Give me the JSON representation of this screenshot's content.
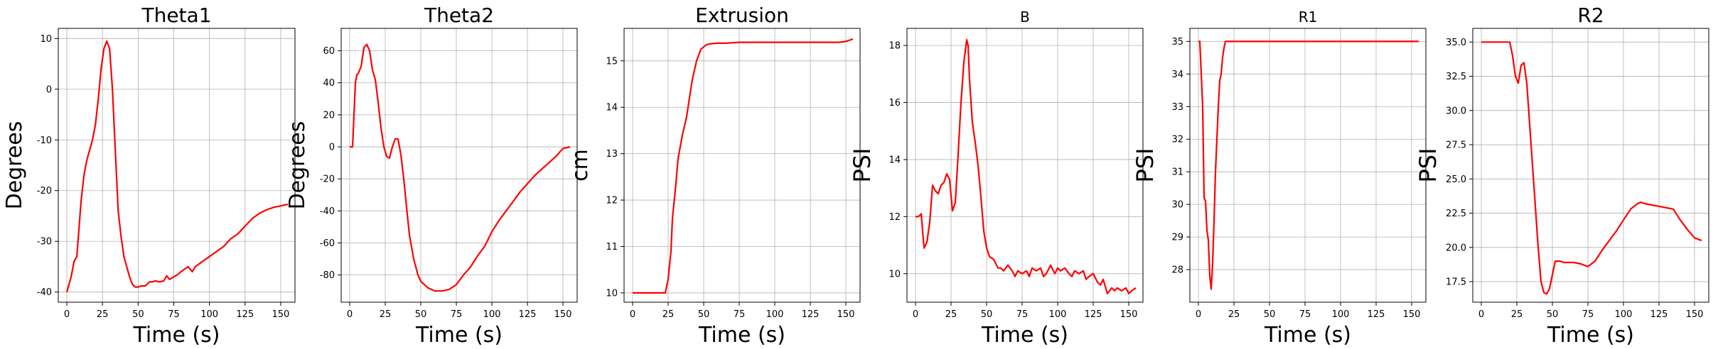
{
  "chart_data": [
    {
      "type": "line",
      "title": "Theta1",
      "xlabel": "Time (s)",
      "ylabel": "Degrees",
      "xlim": [
        -6,
        160
      ],
      "ylim": [
        -42,
        12
      ],
      "xticks": [
        0,
        25,
        50,
        75,
        100,
        125,
        150
      ],
      "yticks": [
        -40,
        -30,
        -20,
        -10,
        0,
        10
      ],
      "grid": true,
      "color": "#ff0000",
      "x": [
        0,
        3,
        5,
        7,
        10,
        12,
        14,
        16,
        18,
        20,
        22,
        24,
        26,
        28,
        30,
        32,
        34,
        36,
        38,
        40,
        42,
        44,
        46,
        48,
        50,
        52,
        55,
        58,
        60,
        62,
        65,
        68,
        70,
        72,
        75,
        78,
        80,
        85,
        88,
        90,
        95,
        100,
        105,
        110,
        115,
        120,
        125,
        130,
        135,
        140,
        145,
        150,
        155
      ],
      "y": [
        -40,
        -37,
        -34,
        -33,
        -22,
        -17,
        -14,
        -12,
        -10,
        -7,
        -2,
        4,
        8,
        9.5,
        8,
        0,
        -12,
        -24,
        -29,
        -33,
        -35,
        -37,
        -38.5,
        -39,
        -39,
        -38.8,
        -38.8,
        -38,
        -38,
        -37.8,
        -38,
        -37.8,
        -36.8,
        -37.5,
        -37,
        -36.5,
        -36,
        -35,
        -36,
        -35,
        -34,
        -33,
        -32,
        -31,
        -29.5,
        -28.5,
        -27,
        -25.5,
        -24.5,
        -23.8,
        -23.3,
        -23,
        -22.7
      ]
    },
    {
      "type": "line",
      "title": "Theta2",
      "xlabel": "Time (s)",
      "ylabel": "Degrees",
      "xlim": [
        -6,
        160
      ],
      "ylim": [
        -97,
        74
      ],
      "xticks": [
        0,
        25,
        50,
        75,
        100,
        125,
        150
      ],
      "yticks": [
        -80,
        -60,
        -40,
        -20,
        0,
        20,
        40,
        60
      ],
      "grid": true,
      "color": "#ff0000",
      "x": [
        0,
        2,
        4,
        5,
        6,
        8,
        10,
        12,
        14,
        16,
        18,
        20,
        22,
        24,
        26,
        28,
        30,
        32,
        34,
        36,
        38,
        40,
        42,
        45,
        48,
        50,
        55,
        60,
        65,
        70,
        75,
        80,
        85,
        90,
        95,
        100,
        105,
        110,
        115,
        120,
        125,
        130,
        135,
        140,
        145,
        150,
        155
      ],
      "y": [
        0,
        0,
        40,
        45,
        46,
        50,
        62,
        64,
        60,
        48,
        42,
        28,
        12,
        0,
        -6,
        -7,
        0,
        5,
        5,
        -5,
        -20,
        -38,
        -55,
        -70,
        -80,
        -84,
        -88,
        -90,
        -90,
        -89,
        -86,
        -80,
        -75,
        -68,
        -62,
        -53,
        -46,
        -40,
        -34,
        -28,
        -23,
        -18,
        -14,
        -10,
        -6,
        -1,
        0
      ]
    },
    {
      "type": "line",
      "title": "Extrusion",
      "xlabel": "Time (s)",
      "ylabel": "cm",
      "xlim": [
        -6,
        160
      ],
      "ylim": [
        9.8,
        15.7
      ],
      "xticks": [
        0,
        25,
        50,
        75,
        100,
        125,
        150
      ],
      "yticks": [
        10,
        11,
        12,
        13,
        14,
        15
      ],
      "grid": true,
      "color": "#ff0000",
      "x": [
        0,
        10,
        20,
        23,
        25,
        27,
        28,
        30,
        32,
        35,
        38,
        40,
        42,
        45,
        48,
        50,
        52,
        55,
        60,
        65,
        70,
        75,
        80,
        90,
        100,
        110,
        120,
        130,
        140,
        145,
        148,
        150,
        153,
        155
      ],
      "y": [
        10,
        10,
        10,
        10,
        10.3,
        10.9,
        11.6,
        12.2,
        12.9,
        13.4,
        13.8,
        14.2,
        14.6,
        15.0,
        15.25,
        15.3,
        15.35,
        15.37,
        15.38,
        15.38,
        15.39,
        15.4,
        15.4,
        15.4,
        15.4,
        15.4,
        15.4,
        15.4,
        15.4,
        15.4,
        15.41,
        15.42,
        15.45,
        15.47
      ]
    },
    {
      "type": "line",
      "title": "B",
      "xlabel": "Time (s)",
      "ylabel": "PSI",
      "xlim": [
        -6,
        160
      ],
      "ylim": [
        9,
        18.6
      ],
      "xticks": [
        0,
        25,
        50,
        75,
        100,
        125,
        150
      ],
      "yticks": [
        10,
        12,
        14,
        16,
        18
      ],
      "grid": true,
      "color": "#ff0000",
      "x": [
        0,
        2,
        4,
        6,
        8,
        10,
        12,
        14,
        16,
        18,
        20,
        22,
        24,
        26,
        28,
        30,
        32,
        34,
        36,
        37,
        38,
        40,
        42,
        44,
        46,
        48,
        50,
        52,
        55,
        58,
        60,
        62,
        65,
        68,
        70,
        72,
        75,
        78,
        80,
        82,
        85,
        88,
        90,
        92,
        95,
        98,
        100,
        102,
        105,
        108,
        110,
        112,
        115,
        118,
        120,
        122,
        125,
        128,
        130,
        132,
        135,
        138,
        140,
        142,
        145,
        148,
        150,
        152,
        155
      ],
      "y": [
        12,
        12,
        12.1,
        10.9,
        11.1,
        11.8,
        13.1,
        12.9,
        12.8,
        13.1,
        13.2,
        13.5,
        13.3,
        12.2,
        12.5,
        14.2,
        16,
        17.4,
        18.2,
        18,
        16.8,
        15.3,
        14.6,
        13.8,
        12.7,
        11.5,
        10.9,
        10.6,
        10.5,
        10.2,
        10.2,
        10.1,
        10.3,
        10.1,
        9.9,
        10.1,
        10,
        10.1,
        9.9,
        10.2,
        10.1,
        10.2,
        9.9,
        10,
        10.3,
        10,
        10.2,
        10.1,
        10.2,
        10,
        9.9,
        10.1,
        10,
        10.1,
        9.8,
        9.9,
        10,
        9.7,
        9.6,
        9.8,
        9.3,
        9.5,
        9.4,
        9.5,
        9.4,
        9.5,
        9.3,
        9.4,
        9.5
      ]
    },
    {
      "type": "line",
      "title": "R1",
      "xlabel": "Time (s)",
      "ylabel": "PSI",
      "xlim": [
        -6,
        160
      ],
      "ylim": [
        27,
        35.4
      ],
      "xticks": [
        0,
        25,
        50,
        75,
        100,
        125,
        150
      ],
      "yticks": [
        28,
        29,
        30,
        31,
        32,
        33,
        34,
        35
      ],
      "grid": true,
      "color": "#ff0000",
      "x": [
        0,
        1,
        2,
        3,
        4,
        5,
        6,
        7,
        8,
        9,
        10,
        11,
        12,
        13,
        14,
        15,
        16,
        17,
        18,
        19,
        20,
        21,
        25,
        50,
        75,
        100,
        125,
        150,
        155
      ],
      "y": [
        35,
        35,
        34,
        33,
        30.2,
        30.1,
        29.2,
        28.9,
        27.8,
        27.4,
        28.2,
        29.5,
        31,
        32,
        33,
        33.8,
        34,
        34.5,
        34.8,
        35,
        35,
        35,
        35,
        35,
        35,
        35,
        35,
        35,
        35
      ]
    },
    {
      "type": "line",
      "title": "R2",
      "xlabel": "Time (s)",
      "ylabel": "PSI",
      "xlim": [
        -6,
        160
      ],
      "ylim": [
        16,
        36
      ],
      "xticks": [
        0,
        25,
        50,
        75,
        100,
        125,
        150
      ],
      "yticks": [
        17.5,
        20.0,
        22.5,
        25.0,
        27.5,
        30.0,
        32.5,
        35.0
      ],
      "ytick_labels": [
        "17.5",
        "20.0",
        "22.5",
        "25.0",
        "27.5",
        "30.0",
        "32.5",
        "35.0"
      ],
      "grid": true,
      "color": "#ff0000",
      "x": [
        0,
        5,
        10,
        15,
        20,
        22,
        24,
        26,
        28,
        30,
        32,
        34,
        36,
        38,
        40,
        42,
        44,
        46,
        48,
        50,
        52,
        55,
        58,
        60,
        65,
        70,
        75,
        80,
        85,
        90,
        95,
        100,
        105,
        110,
        112,
        115,
        120,
        125,
        130,
        135,
        140,
        145,
        150,
        155
      ],
      "y": [
        35,
        35,
        35,
        35,
        35,
        34,
        32.5,
        32,
        33.3,
        33.5,
        32,
        29,
        26,
        23,
        20,
        17.5,
        16.7,
        16.6,
        17,
        18,
        19,
        19,
        18.9,
        18.9,
        18.9,
        18.8,
        18.6,
        19,
        19.8,
        20.5,
        21.2,
        22,
        22.8,
        23.2,
        23.3,
        23.2,
        23.1,
        23.0,
        22.9,
        22.8,
        22,
        21.3,
        20.7,
        20.5
      ]
    }
  ]
}
